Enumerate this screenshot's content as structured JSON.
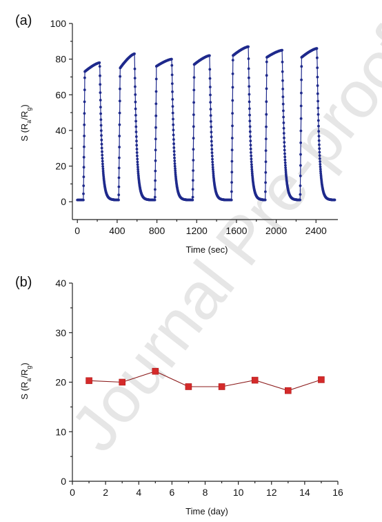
{
  "watermark": "Journal Pre-proof",
  "chart_data": [
    {
      "panel": "(a)",
      "type": "line",
      "xlabel": "Time (sec)",
      "ylabel": "S (R_a/R_g)",
      "xlim": [
        -50,
        2620
      ],
      "ylim": [
        -10,
        100
      ],
      "xticks": [
        0,
        400,
        800,
        1200,
        1600,
        2000,
        2400
      ],
      "yticks": [
        0,
        20,
        40,
        60,
        80,
        100
      ],
      "color": "#1f2a8c",
      "grid": false,
      "cycles": [
        {
          "on": 60,
          "plateau_start": 73,
          "plateau_end": 78,
          "off": 225
        },
        {
          "on": 415,
          "plateau_start": 75,
          "plateau_end": 83,
          "off": 575
        },
        {
          "on": 780,
          "plateau_start": 76,
          "plateau_end": 80,
          "off": 950
        },
        {
          "on": 1160,
          "plateau_start": 77,
          "plateau_end": 82,
          "off": 1330
        },
        {
          "on": 1550,
          "plateau_start": 82,
          "plateau_end": 87,
          "off": 1720
        },
        {
          "on": 1890,
          "plateau_start": 81,
          "plateau_end": 85,
          "off": 2060
        },
        {
          "on": 2240,
          "plateau_start": 81,
          "plateau_end": 86,
          "off": 2410
        }
      ],
      "baseline": 1.0,
      "end_time": 2590
    },
    {
      "panel": "(b)",
      "type": "line",
      "xlabel": "Time (day)",
      "ylabel": "S (R_a/R_g)",
      "xlim": [
        0,
        16
      ],
      "ylim": [
        0,
        40
      ],
      "xticks": [
        0,
        2,
        4,
        6,
        8,
        10,
        12,
        14,
        16
      ],
      "yticks": [
        0,
        10,
        20,
        30,
        40
      ],
      "color": "#d42a2a",
      "line_color": "#8b1a1a",
      "grid": false,
      "x": [
        1,
        3,
        5,
        7,
        9,
        11,
        13,
        15
      ],
      "y": [
        20.3,
        20.0,
        22.2,
        19.1,
        19.1,
        20.4,
        18.3,
        20.5
      ]
    }
  ]
}
